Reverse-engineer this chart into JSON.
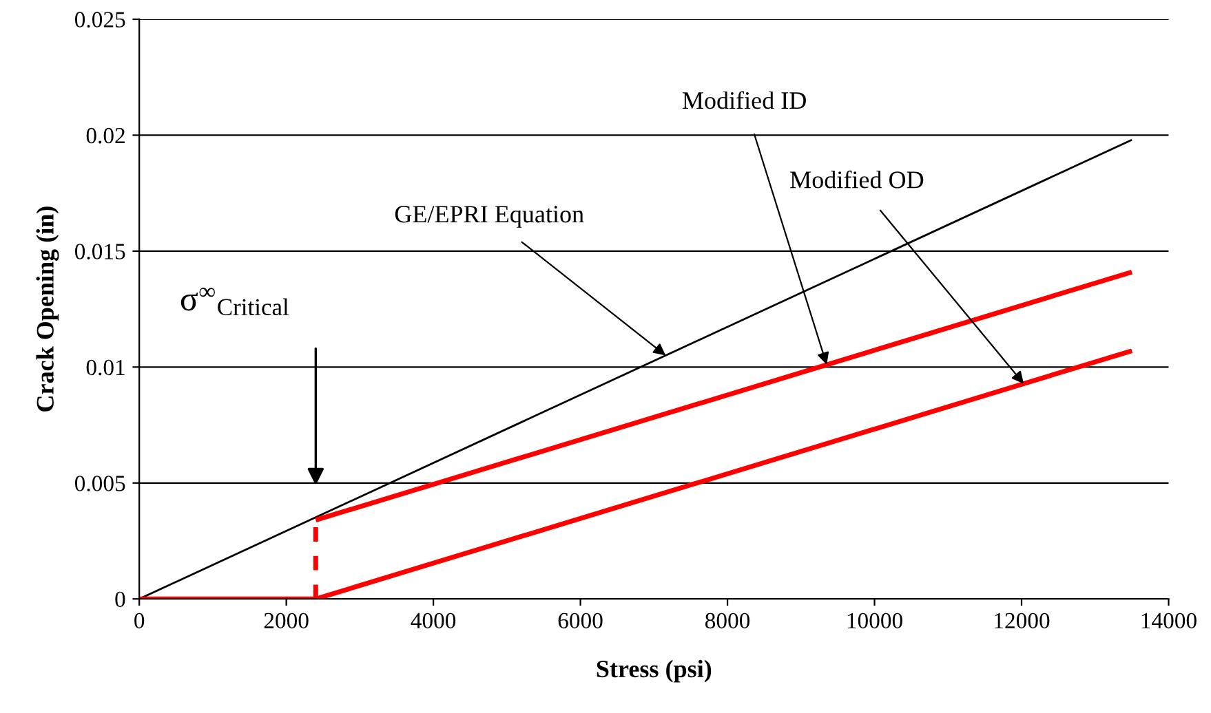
{
  "chart_data": {
    "type": "line",
    "xlabel": "Stress (psi)",
    "ylabel": "Crack Opening (in)",
    "xlim": [
      0,
      14000
    ],
    "xticks": [
      0,
      2000,
      4000,
      6000,
      8000,
      10000,
      12000,
      14000
    ],
    "ylim": [
      0,
      0.025
    ],
    "yticks": [
      0,
      0.005,
      0.01,
      0.015,
      0.02,
      0.025
    ],
    "grid": "y",
    "legend": false,
    "marker": "none",
    "series": [
      {
        "color": "#000000",
        "x": [
          0,
          13500
        ],
        "values": [
          0,
          0.0198
        ]
      },
      {
        "color": "#ff0000",
        "x": [
          2400,
          2400
        ],
        "values": [
          0,
          0.0034
        ],
        "line_style": "dashed"
      },
      {
        "color": "#ff0000",
        "x": [
          2400,
          13500
        ],
        "values": [
          0.0034,
          0.0141
        ]
      },
      {
        "color": "#ff0000",
        "x": [
          0,
          2400,
          13500
        ],
        "values": [
          0,
          0,
          0.0107
        ]
      }
    ],
    "annotations": [
      {
        "text": "GE/EPRI Equation",
        "x": 7160,
        "y": 0.0105
      },
      {
        "text": "Modified ID",
        "x": 9350,
        "y": 0.0101
      },
      {
        "text": "Modified OD",
        "x": 12030,
        "y": 0.00928
      },
      "σ$^{∞}$$_{Critical}$"
    ]
  }
}
